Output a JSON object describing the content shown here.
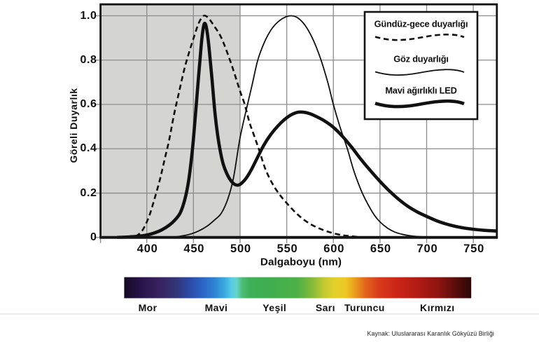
{
  "figure_title": "Spectral sensitivity chart",
  "colors": {
    "background": "#ffffff",
    "shaded_band": "#d4d4d2",
    "gridline": "#8c8c8c",
    "frame": "#141414",
    "curve": "#101010",
    "legend_background": "#ffffff",
    "hairline": "#e2e2e2"
  },
  "y_axis": {
    "title": "Göreli Duyarlık",
    "tick_labels": [
      "1.0",
      "0.8",
      "0.6",
      "0.4",
      "0.2",
      "0"
    ],
    "tick_values": [
      1.0,
      0.8,
      0.6,
      0.4,
      0.2,
      0
    ]
  },
  "x_axis": {
    "title": "Dalgaboyu (nm)",
    "tick_labels": [
      "400",
      "450",
      "500",
      "550",
      "600",
      "650",
      "700",
      "750"
    ],
    "tick_values": [
      400,
      450,
      500,
      550,
      600,
      650,
      700,
      750
    ]
  },
  "legend": {
    "items": [
      {
        "label": "Gündüz-gece duyarlığı",
        "style": "dashed"
      },
      {
        "label": "Göz duyarlığı",
        "style": "thin"
      },
      {
        "label": "Mavi ağırlıklı LED",
        "style": "thick"
      }
    ]
  },
  "caption": "Kaynak: Uluslararası Karanlık Gökyüzü Birliği",
  "chart_data": {
    "type": "line",
    "title": "",
    "xlabel": "Dalgaboyu (nm)",
    "ylabel": "Göreli Duyarlık",
    "xlim": [
      351,
      776
    ],
    "ylim": [
      0,
      1.053
    ],
    "x_ticks": [
      400,
      450,
      500,
      550,
      600,
      650,
      700,
      750
    ],
    "y_ticks": [
      0,
      0.2,
      0.4,
      0.6,
      0.8,
      1.0
    ],
    "grid": true,
    "legend_position": "top-right",
    "shaded_band": {
      "x_from": 351,
      "x_to": 500
    },
    "series": [
      {
        "name": "Gündüz-gece duyarlığı",
        "style": "dashed",
        "points": [
          [
            388,
            0.004
          ],
          [
            395,
            0.03
          ],
          [
            402,
            0.09
          ],
          [
            408,
            0.17
          ],
          [
            414,
            0.26
          ],
          [
            419,
            0.35
          ],
          [
            424,
            0.44
          ],
          [
            429,
            0.55
          ],
          [
            434,
            0.645
          ],
          [
            440,
            0.755
          ],
          [
            445,
            0.83
          ],
          [
            451,
            0.91
          ],
          [
            456,
            0.97
          ],
          [
            461,
            1.0
          ],
          [
            466,
            0.99
          ],
          [
            472,
            0.955
          ],
          [
            480,
            0.9
          ],
          [
            490,
            0.79
          ],
          [
            500,
            0.66
          ],
          [
            505,
            0.6
          ],
          [
            510,
            0.52
          ],
          [
            515,
            0.46
          ],
          [
            520,
            0.4
          ],
          [
            527,
            0.31
          ],
          [
            535,
            0.24
          ],
          [
            543,
            0.19
          ],
          [
            550,
            0.155
          ],
          [
            560,
            0.11
          ],
          [
            570,
            0.075
          ],
          [
            580,
            0.05
          ],
          [
            590,
            0.032
          ],
          [
            600,
            0.019
          ],
          [
            610,
            0.01
          ],
          [
            620,
            0.005
          ],
          [
            628,
            0.002
          ]
        ]
      },
      {
        "name": "Göz duyarlığı",
        "style": "thin",
        "points": [
          [
            428,
            0.001
          ],
          [
            435,
            0.005
          ],
          [
            445,
            0.013
          ],
          [
            455,
            0.028
          ],
          [
            465,
            0.052
          ],
          [
            473,
            0.08
          ],
          [
            480,
            0.11
          ],
          [
            487,
            0.175
          ],
          [
            493,
            0.27
          ],
          [
            500,
            0.45
          ],
          [
            508,
            0.6
          ],
          [
            513,
            0.69
          ],
          [
            519,
            0.8
          ],
          [
            526,
            0.88
          ],
          [
            533,
            0.935
          ],
          [
            540,
            0.97
          ],
          [
            548,
            0.993
          ],
          [
            555,
            1.0
          ],
          [
            562,
            0.99
          ],
          [
            570,
            0.955
          ],
          [
            578,
            0.895
          ],
          [
            586,
            0.81
          ],
          [
            594,
            0.7
          ],
          [
            600,
            0.6
          ],
          [
            607,
            0.5
          ],
          [
            615,
            0.4
          ],
          [
            622,
            0.3
          ],
          [
            630,
            0.21
          ],
          [
            637,
            0.15
          ],
          [
            644,
            0.1
          ],
          [
            650,
            0.07
          ],
          [
            658,
            0.042
          ],
          [
            666,
            0.024
          ],
          [
            675,
            0.013
          ],
          [
            685,
            0.006
          ],
          [
            700,
            0.002
          ],
          [
            720,
            0.001
          ],
          [
            775,
            0.0
          ]
        ]
      },
      {
        "name": "Mavi ağırlıklı LED",
        "style": "thick",
        "points": [
          [
            368,
            0.0
          ],
          [
            380,
            0.002
          ],
          [
            390,
            0.005
          ],
          [
            400,
            0.011
          ],
          [
            408,
            0.02
          ],
          [
            416,
            0.034
          ],
          [
            424,
            0.055
          ],
          [
            430,
            0.078
          ],
          [
            436,
            0.112
          ],
          [
            441,
            0.175
          ],
          [
            445,
            0.26
          ],
          [
            449,
            0.4
          ],
          [
            452,
            0.545
          ],
          [
            455,
            0.7
          ],
          [
            457,
            0.8
          ],
          [
            459,
            0.895
          ],
          [
            461,
            0.955
          ],
          [
            462.5,
            0.965
          ],
          [
            464,
            0.945
          ],
          [
            466,
            0.885
          ],
          [
            468,
            0.8
          ],
          [
            470,
            0.71
          ],
          [
            473,
            0.565
          ],
          [
            476,
            0.46
          ],
          [
            479,
            0.385
          ],
          [
            482,
            0.33
          ],
          [
            486,
            0.286
          ],
          [
            490,
            0.257
          ],
          [
            494,
            0.24
          ],
          [
            498,
            0.236
          ],
          [
            502,
            0.246
          ],
          [
            507,
            0.27
          ],
          [
            512,
            0.305
          ],
          [
            518,
            0.355
          ],
          [
            524,
            0.405
          ],
          [
            530,
            0.447
          ],
          [
            537,
            0.486
          ],
          [
            544,
            0.518
          ],
          [
            550,
            0.54
          ],
          [
            556,
            0.556
          ],
          [
            562,
            0.565
          ],
          [
            568,
            0.565
          ],
          [
            575,
            0.558
          ],
          [
            582,
            0.545
          ],
          [
            590,
            0.527
          ],
          [
            600,
            0.497
          ],
          [
            610,
            0.455
          ],
          [
            620,
            0.405
          ],
          [
            630,
            0.35
          ],
          [
            640,
            0.3
          ],
          [
            650,
            0.253
          ],
          [
            660,
            0.21
          ],
          [
            670,
            0.172
          ],
          [
            680,
            0.14
          ],
          [
            690,
            0.115
          ],
          [
            700,
            0.095
          ],
          [
            712,
            0.073
          ],
          [
            725,
            0.056
          ],
          [
            738,
            0.044
          ],
          [
            750,
            0.037
          ],
          [
            762,
            0.032
          ],
          [
            775,
            0.029
          ]
        ]
      }
    ],
    "spectrum_bar": {
      "wavelength_range": [
        378,
        750
      ],
      "labels": [
        {
          "text": "Mor",
          "wavelength": 401
        },
        {
          "text": "Mavi",
          "wavelength": 474.5
        },
        {
          "text": "Yeşil",
          "wavelength": 537
        },
        {
          "text": "Sarı",
          "wavelength": 591.5
        },
        {
          "text": "Turuncu",
          "wavelength": 633.5
        },
        {
          "text": "Kırmızı",
          "wavelength": 711.5
        }
      ],
      "gradient_stops": [
        {
          "pos": 0.0,
          "color": "#150b24"
        },
        {
          "pos": 0.045,
          "color": "#271348"
        },
        {
          "pos": 0.1,
          "color": "#38215f"
        },
        {
          "pos": 0.15,
          "color": "#333577"
        },
        {
          "pos": 0.19,
          "color": "#2b4aa8"
        },
        {
          "pos": 0.23,
          "color": "#2c68c8"
        },
        {
          "pos": 0.262,
          "color": "#2f86d4"
        },
        {
          "pos": 0.29,
          "color": "#3aabde"
        },
        {
          "pos": 0.308,
          "color": "#55cbe7"
        },
        {
          "pos": 0.324,
          "color": "#68d3cb"
        },
        {
          "pos": 0.34,
          "color": "#4cbc78"
        },
        {
          "pos": 0.36,
          "color": "#3fb05a"
        },
        {
          "pos": 0.42,
          "color": "#3fae4e"
        },
        {
          "pos": 0.5,
          "color": "#4db046"
        },
        {
          "pos": 0.545,
          "color": "#8abc39"
        },
        {
          "pos": 0.578,
          "color": "#c5ca30"
        },
        {
          "pos": 0.607,
          "color": "#e3d12a"
        },
        {
          "pos": 0.638,
          "color": "#eec824"
        },
        {
          "pos": 0.663,
          "color": "#eba01e"
        },
        {
          "pos": 0.695,
          "color": "#e2651d"
        },
        {
          "pos": 0.735,
          "color": "#d83a1b"
        },
        {
          "pos": 0.785,
          "color": "#cc2518"
        },
        {
          "pos": 0.845,
          "color": "#b11b14"
        },
        {
          "pos": 0.905,
          "color": "#8e1410"
        },
        {
          "pos": 0.952,
          "color": "#5c0e0b"
        },
        {
          "pos": 1.0,
          "color": "#2b0707"
        }
      ]
    }
  }
}
